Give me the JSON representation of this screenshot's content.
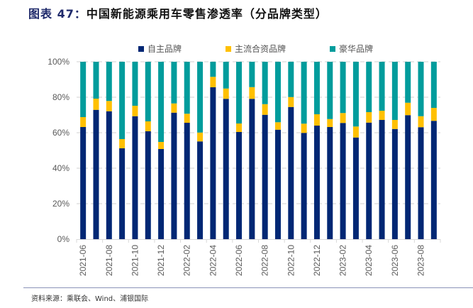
{
  "title": {
    "prefix": "图表 47：",
    "text": "中国新能源乘用车零售渗透率（分品牌类型）"
  },
  "source": "资料来源：乘联会、Wind、浦银国际",
  "colors": {
    "domestic": "#002774",
    "mainstream_jv": "#FFC000",
    "luxury": "#009C9C"
  },
  "chart_data": {
    "type": "bar",
    "stacked": true,
    "title": "中国新能源乘用车零售渗透率（分品牌类型）",
    "xlabel": "",
    "ylabel": "",
    "ylim": [
      0,
      100
    ],
    "y_unit": "%",
    "y_ticks": [
      "0%",
      "20%",
      "40%",
      "60%",
      "80%",
      "100%"
    ],
    "grid": true,
    "legend_position": "top",
    "categories": [
      "2021-06",
      "2021-07",
      "2021-08",
      "2021-09",
      "2021-10",
      "2021-11",
      "2021-12",
      "2022-01",
      "2022-02",
      "2022-03",
      "2022-04",
      "2022-05",
      "2022-06",
      "2022-07",
      "2022-08",
      "2022-09",
      "2022-10",
      "2022-11",
      "2022-12",
      "2023-01",
      "2023-02",
      "2023-03",
      "2023-04",
      "2023-05",
      "2023-06",
      "2023-07",
      "2023-08",
      "2023-09"
    ],
    "x_tick_labels": [
      "2021-06",
      "2021-08",
      "2021-10",
      "2021-12",
      "2022-02",
      "2022-04",
      "2022-06",
      "2022-08",
      "2022-10",
      "2022-12",
      "2023-02",
      "2023-04",
      "2023-06",
      "2023-08"
    ],
    "series": [
      {
        "name": "自主品牌",
        "color_key": "domestic",
        "values": [
          63.2,
          72.9,
          72.1,
          51.2,
          69.3,
          60.8,
          50.8,
          71.3,
          65.6,
          55.1,
          85.6,
          79.1,
          60.4,
          79.1,
          70.1,
          61.7,
          74.5,
          59.9,
          64.0,
          63.2,
          65.5,
          57.3,
          65.7,
          67.2,
          62.1,
          69.9,
          63.1,
          66.7
        ]
      },
      {
        "name": "主流合资品牌",
        "color_key": "mainstream_jv",
        "values": [
          5.6,
          6.3,
          5.8,
          5.2,
          5.9,
          5.6,
          4.0,
          5.2,
          5.1,
          5.0,
          5.9,
          5.8,
          4.8,
          6.6,
          6.0,
          4.2,
          5.6,
          5.2,
          6.4,
          4.5,
          5.6,
          6.2,
          5.9,
          5.2,
          5.1,
          7.0,
          6.2,
          7.3
        ]
      },
      {
        "name": "豪华品牌",
        "color_key": "luxury",
        "values": [
          31.2,
          20.8,
          22.1,
          43.6,
          24.8,
          33.6,
          45.2,
          23.5,
          29.3,
          39.9,
          8.5,
          15.1,
          34.8,
          14.3,
          23.9,
          34.1,
          19.9,
          34.9,
          29.6,
          32.3,
          28.9,
          36.5,
          28.4,
          27.6,
          32.8,
          23.1,
          30.7,
          26.0
        ]
      }
    ]
  }
}
